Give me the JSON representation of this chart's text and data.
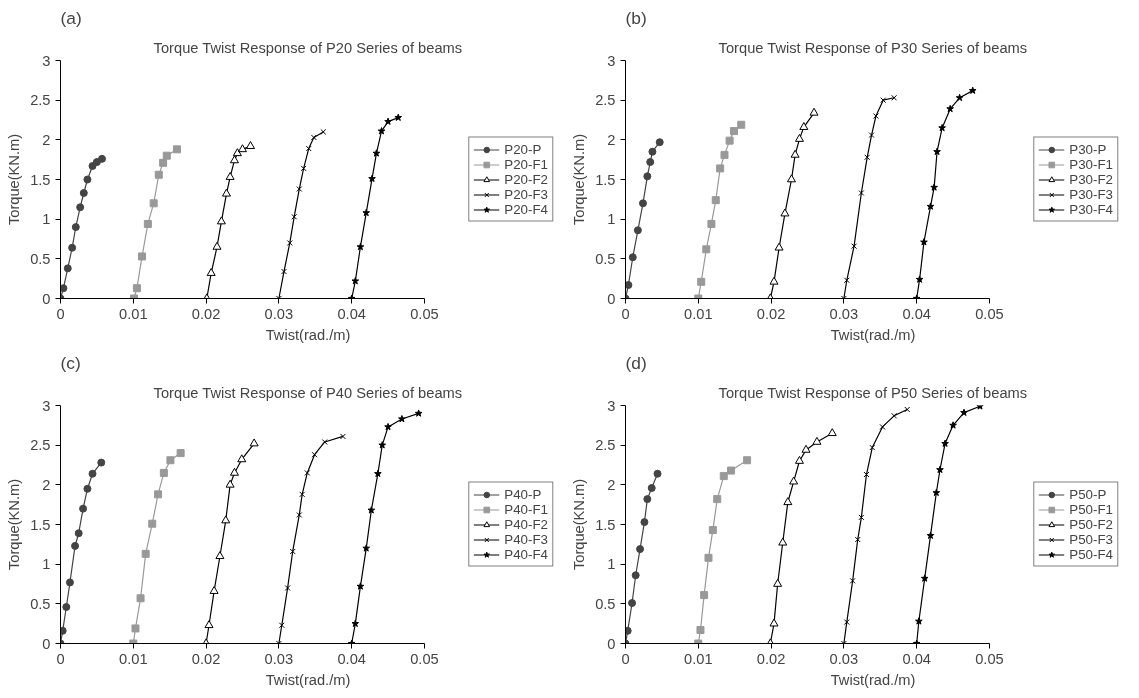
{
  "chart_data": [
    {
      "type": "line",
      "title": "Torque Twist Response of P20 Series of beams",
      "annotations": [
        "(a)"
      ],
      "xlabel": "Twist(rad./m)",
      "ylabel": "Torque(KN.m)",
      "xlim": [
        0,
        0.05
      ],
      "ylim": [
        0,
        3
      ],
      "xticks": [
        0,
        0.01,
        0.02,
        0.03,
        0.04,
        0.05
      ],
      "yticks": [
        0,
        0.5,
        1,
        1.5,
        2,
        2.5,
        3
      ],
      "grid": false,
      "legend": "right",
      "line_style": "solid",
      "series": [
        {
          "name": "P20-P",
          "color": "#444444",
          "marker": "circle",
          "x": [
            0,
            0.0004,
            0.001,
            0.0016,
            0.0021,
            0.0027,
            0.0032,
            0.0037,
            0.0044,
            0.005,
            0.0057
          ],
          "values": [
            0,
            0.13,
            0.38,
            0.64,
            0.9,
            1.15,
            1.33,
            1.5,
            1.67,
            1.72,
            1.76
          ]
        },
        {
          "name": "P20-F1",
          "color": "#999999",
          "marker": "square",
          "x": [
            0.0101,
            0.0105,
            0.0112,
            0.012,
            0.0128,
            0.0135,
            0.0141,
            0.0146,
            0.016
          ],
          "values": [
            0,
            0.13,
            0.53,
            0.94,
            1.2,
            1.56,
            1.71,
            1.8,
            1.88
          ]
        },
        {
          "name": "P20-F2",
          "color": "#000000",
          "marker": "triangle",
          "x": [
            0.0201,
            0.0207,
            0.0215,
            0.0221,
            0.0228,
            0.0233,
            0.0239,
            0.0243,
            0.025,
            0.0261
          ],
          "values": [
            0,
            0.32,
            0.65,
            0.97,
            1.32,
            1.53,
            1.74,
            1.83,
            1.88,
            1.92
          ]
        },
        {
          "name": "P20-F3",
          "color": "#000000",
          "marker": "cross",
          "x": [
            0.03,
            0.0307,
            0.0315,
            0.0321,
            0.0328,
            0.0334,
            0.0341,
            0.0348,
            0.0361
          ],
          "values": [
            0,
            0.34,
            0.7,
            1.03,
            1.38,
            1.64,
            1.89,
            2.03,
            2.1
          ]
        },
        {
          "name": "P20-F4",
          "color": "#000000",
          "marker": "star",
          "x": [
            0.04,
            0.0405,
            0.0412,
            0.042,
            0.0428,
            0.0434,
            0.0441,
            0.045,
            0.0464
          ],
          "values": [
            0,
            0.22,
            0.65,
            1.08,
            1.51,
            1.83,
            2.11,
            2.23,
            2.28
          ]
        }
      ]
    },
    {
      "type": "line",
      "title": "Torque Twist Response of P30 Series of beams",
      "annotations": [
        "(b)"
      ],
      "xlabel": "Twist(rad./m)",
      "ylabel": "Torque(KN.m)",
      "xlim": [
        0,
        0.05
      ],
      "ylim": [
        0,
        3
      ],
      "xticks": [
        0,
        0.01,
        0.02,
        0.03,
        0.04,
        0.05
      ],
      "yticks": [
        0,
        0.5,
        1,
        1.5,
        2,
        2.5,
        3
      ],
      "grid": false,
      "legend": "right",
      "line_style": "solid",
      "series": [
        {
          "name": "P30-P",
          "color": "#444444",
          "marker": "circle",
          "x": [
            0,
            0.0004,
            0.001,
            0.0017,
            0.0024,
            0.003,
            0.0034,
            0.0037,
            0.0047
          ],
          "values": [
            0,
            0.17,
            0.52,
            0.86,
            1.2,
            1.54,
            1.72,
            1.85,
            1.97
          ]
        },
        {
          "name": "P30-F1",
          "color": "#999999",
          "marker": "square",
          "x": [
            0.01,
            0.0104,
            0.0111,
            0.0118,
            0.0124,
            0.013,
            0.0136,
            0.0143,
            0.0149,
            0.0159
          ],
          "values": [
            0,
            0.21,
            0.62,
            0.94,
            1.24,
            1.64,
            1.81,
            1.99,
            2.11,
            2.19
          ]
        },
        {
          "name": "P30-F2",
          "color": "#000000",
          "marker": "triangle",
          "x": [
            0.0199,
            0.0204,
            0.0211,
            0.0219,
            0.0228,
            0.0233,
            0.0239,
            0.0245,
            0.0259
          ],
          "values": [
            0,
            0.21,
            0.64,
            1.07,
            1.5,
            1.81,
            2.01,
            2.16,
            2.34
          ]
        },
        {
          "name": "P30-F3",
          "color": "#000000",
          "marker": "cross",
          "x": [
            0.03,
            0.0304,
            0.0314,
            0.0324,
            0.0332,
            0.0338,
            0.0344,
            0.0354,
            0.0369
          ],
          "values": [
            0,
            0.23,
            0.66,
            1.33,
            1.78,
            2.06,
            2.3,
            2.5,
            2.53
          ]
        },
        {
          "name": "P30-F4",
          "color": "#000000",
          "marker": "star",
          "x": [
            0.04,
            0.0404,
            0.041,
            0.0419,
            0.0424,
            0.0428,
            0.0435,
            0.0446,
            0.0459,
            0.0477
          ],
          "values": [
            0,
            0.24,
            0.71,
            1.16,
            1.4,
            1.85,
            2.15,
            2.39,
            2.53,
            2.62
          ]
        }
      ]
    },
    {
      "type": "line",
      "title": "Torque Twist Response of P40 Series of beams",
      "annotations": [
        "(c)"
      ],
      "xlabel": "Twist(rad./m)",
      "ylabel": "Torque(KN.m)",
      "xlim": [
        0,
        0.05
      ],
      "ylim": [
        0,
        3
      ],
      "xticks": [
        0,
        0.01,
        0.02,
        0.03,
        0.04,
        0.05
      ],
      "yticks": [
        0,
        0.5,
        1,
        1.5,
        2,
        2.5,
        3
      ],
      "grid": false,
      "legend": "right",
      "line_style": "solid",
      "series": [
        {
          "name": "P40-P",
          "color": "#444444",
          "marker": "circle",
          "x": [
            0,
            0.0003,
            0.0008,
            0.0013,
            0.002,
            0.0025,
            0.0031,
            0.0037,
            0.0044,
            0.0056
          ],
          "values": [
            0,
            0.16,
            0.46,
            0.77,
            1.23,
            1.39,
            1.7,
            1.95,
            2.14,
            2.28
          ]
        },
        {
          "name": "P40-F1",
          "color": "#999999",
          "marker": "square",
          "x": [
            0.01,
            0.0103,
            0.011,
            0.0117,
            0.0126,
            0.0134,
            0.0142,
            0.0151,
            0.0165
          ],
          "values": [
            0,
            0.19,
            0.57,
            1.13,
            1.51,
            1.88,
            2.15,
            2.31,
            2.4
          ]
        },
        {
          "name": "P40-F2",
          "color": "#000000",
          "marker": "triangle",
          "x": [
            0.02,
            0.0204,
            0.0211,
            0.0219,
            0.0227,
            0.0233,
            0.0239,
            0.0249,
            0.0266
          ],
          "values": [
            0,
            0.23,
            0.66,
            1.1,
            1.55,
            2.0,
            2.15,
            2.32,
            2.52
          ]
        },
        {
          "name": "P40-F3",
          "color": "#000000",
          "marker": "cross",
          "x": [
            0.03,
            0.0304,
            0.0312,
            0.0319,
            0.0328,
            0.0332,
            0.0339,
            0.0349,
            0.0363,
            0.0388
          ],
          "values": [
            0,
            0.23,
            0.7,
            1.16,
            1.62,
            1.88,
            2.15,
            2.38,
            2.54,
            2.61
          ]
        },
        {
          "name": "P40-F4",
          "color": "#000000",
          "marker": "star",
          "x": [
            0.04,
            0.0405,
            0.0412,
            0.042,
            0.0427,
            0.0436,
            0.0442,
            0.045,
            0.0469,
            0.0492
          ],
          "values": [
            0,
            0.25,
            0.72,
            1.2,
            1.68,
            2.14,
            2.5,
            2.73,
            2.83,
            2.9
          ]
        }
      ]
    },
    {
      "type": "line",
      "title": "Torque Twist Response of P50 Series of beams",
      "annotations": [
        "(d)"
      ],
      "xlabel": "Twist(rad./m)",
      "ylabel": "Torque(KN.m)",
      "xlim": [
        0,
        0.05
      ],
      "ylim": [
        0,
        3
      ],
      "xticks": [
        0,
        0.01,
        0.02,
        0.03,
        0.04,
        0.05
      ],
      "yticks": [
        0,
        0.5,
        1,
        1.5,
        2,
        2.5,
        3
      ],
      "grid": false,
      "legend": "right",
      "line_style": "solid",
      "series": [
        {
          "name": "P50-P",
          "color": "#444444",
          "marker": "circle",
          "x": [
            0,
            0.0003,
            0.0009,
            0.0014,
            0.002,
            0.0026,
            0.003,
            0.0036,
            0.0044
          ],
          "values": [
            0,
            0.16,
            0.51,
            0.86,
            1.19,
            1.53,
            1.82,
            1.96,
            2.14
          ]
        },
        {
          "name": "P50-F1",
          "color": "#999999",
          "marker": "square",
          "x": [
            0.01,
            0.0103,
            0.0108,
            0.0114,
            0.012,
            0.0126,
            0.0135,
            0.0145,
            0.0167
          ],
          "values": [
            0,
            0.17,
            0.61,
            1.08,
            1.43,
            1.82,
            2.11,
            2.18,
            2.31
          ]
        },
        {
          "name": "P50-F2",
          "color": "#000000",
          "marker": "triangle",
          "x": [
            0.0199,
            0.0204,
            0.0209,
            0.0216,
            0.0223,
            0.0231,
            0.0239,
            0.0248,
            0.0263,
            0.0284
          ],
          "values": [
            0,
            0.25,
            0.75,
            1.27,
            1.78,
            2.04,
            2.3,
            2.44,
            2.54,
            2.65
          ]
        },
        {
          "name": "P50-F3",
          "color": "#000000",
          "marker": "cross",
          "x": [
            0.03,
            0.0304,
            0.0312,
            0.0319,
            0.0324,
            0.0331,
            0.0339,
            0.0353,
            0.0369,
            0.0387
          ],
          "values": [
            0,
            0.27,
            0.79,
            1.31,
            1.59,
            2.13,
            2.47,
            2.73,
            2.87,
            2.95
          ]
        },
        {
          "name": "P50-F4",
          "color": "#000000",
          "marker": "star",
          "x": [
            0.04,
            0.0403,
            0.0411,
            0.0419,
            0.0427,
            0.0432,
            0.0439,
            0.045,
            0.0465,
            0.0487
          ],
          "values": [
            0,
            0.28,
            0.82,
            1.36,
            1.9,
            2.19,
            2.52,
            2.75,
            2.91,
            2.99
          ]
        }
      ]
    }
  ]
}
